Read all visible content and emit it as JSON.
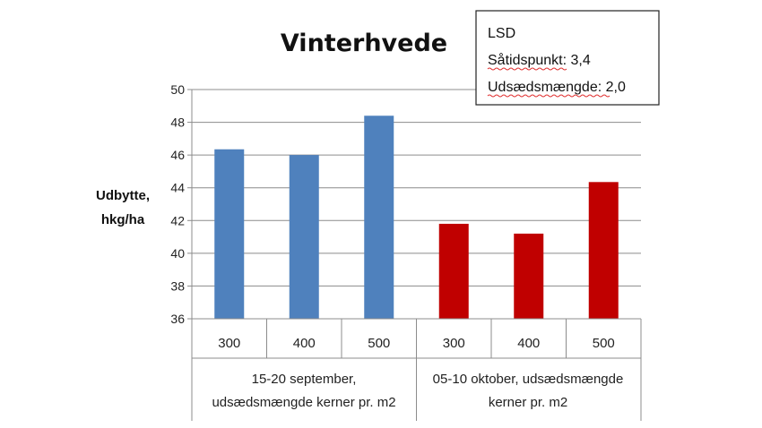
{
  "chart_data": {
    "type": "bar",
    "title": "Vinterhvede",
    "ylabel": [
      "Udbytte,",
      "hkg/ha"
    ],
    "xlabel": "",
    "ylim": [
      36,
      50
    ],
    "yticks": [
      36,
      38,
      40,
      42,
      44,
      46,
      48,
      50
    ],
    "grid": true,
    "categories": [
      "300",
      "400",
      "500",
      "300",
      "400",
      "500"
    ],
    "groups": [
      {
        "label_lines": [
          "15-20 september,",
          "udsædsmængde kerner pr. m2"
        ],
        "color": "#4f81bd"
      },
      {
        "label_lines": [
          "05-10 oktober, udsædsmængde",
          "kerner pr. m2"
        ],
        "color": "#c00000"
      }
    ],
    "series": [
      {
        "values": [
          46.35,
          46.0,
          48.4,
          41.8,
          41.2,
          44.35
        ]
      }
    ],
    "bar_groups": [
      0,
      0,
      0,
      1,
      1,
      1
    ],
    "annotation": {
      "lines": [
        "LSD",
        "Såtidspunkt: 3,4",
        "Udsædsmængde: 2,0"
      ]
    }
  }
}
